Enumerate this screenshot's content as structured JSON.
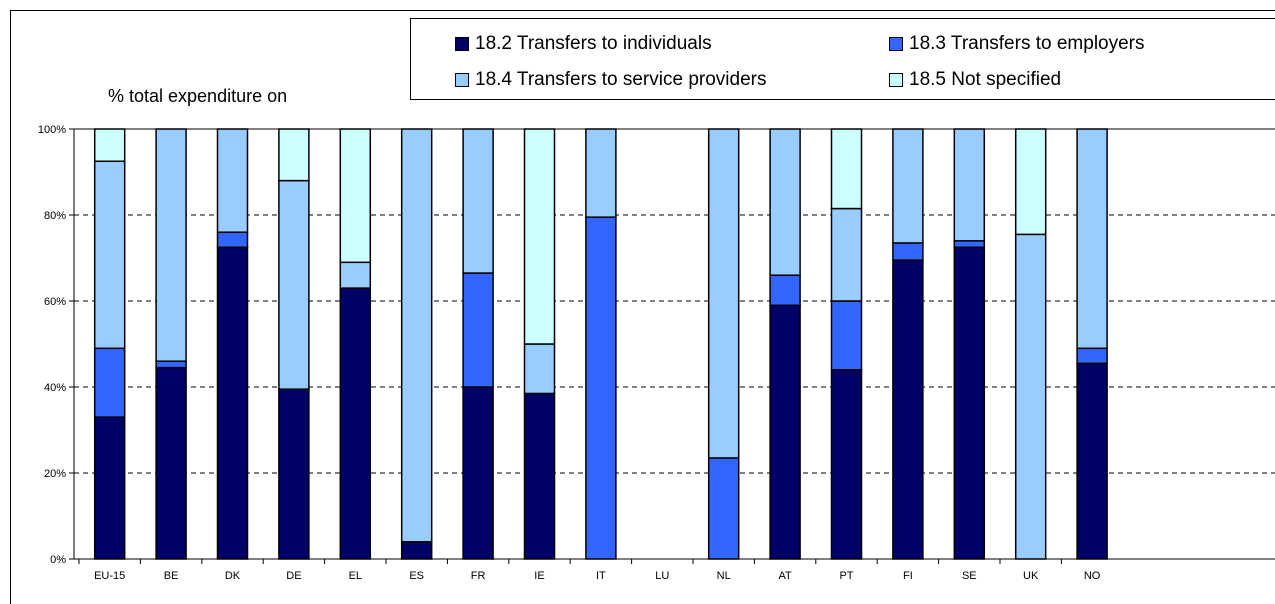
{
  "chart_data": {
    "type": "bar",
    "stacked": true,
    "percent_stacked": true,
    "ylabel": "% total expenditure on",
    "ylim": [
      0,
      100
    ],
    "yticks": [
      "0%",
      "20%",
      "40%",
      "60%",
      "80%",
      "100%"
    ],
    "grid": "horizontal dashed",
    "legend_position": "top-right",
    "categories": [
      "EU-15",
      "BE",
      "DK",
      "DE",
      "EL",
      "ES",
      "FR",
      "IE",
      "IT",
      "LU",
      "NL",
      "AT",
      "PT",
      "FI",
      "SE",
      "UK",
      "NO"
    ],
    "series": [
      {
        "name": "18.2 Transfers to individuals",
        "color": "#000066",
        "values": [
          33,
          44.5,
          72.5,
          39.5,
          63,
          4,
          40,
          38.5,
          0,
          0,
          0,
          59,
          44,
          69.5,
          72.5,
          0,
          45.5
        ]
      },
      {
        "name": "18.3 Transfers to employers",
        "color": "#3366ff",
        "values": [
          16,
          1.5,
          3.5,
          0,
          0,
          0,
          26.5,
          0,
          79.5,
          0,
          23.5,
          7,
          16,
          4,
          1.5,
          0,
          3.5
        ]
      },
      {
        "name": "18.4 Transfers to service providers",
        "color": "#99ccff",
        "values": [
          43.5,
          54,
          24,
          48.5,
          6,
          96,
          33.5,
          11.5,
          20.5,
          0,
          76.5,
          34,
          21.5,
          26.5,
          26,
          75.5,
          51
        ]
      },
      {
        "name": "18.5 Not specified",
        "color": "#ccffff",
        "values": [
          7.5,
          0,
          0,
          12,
          31,
          0,
          0,
          50,
          0,
          0,
          0,
          0,
          18.5,
          0,
          0,
          24.5,
          0
        ]
      }
    ]
  }
}
